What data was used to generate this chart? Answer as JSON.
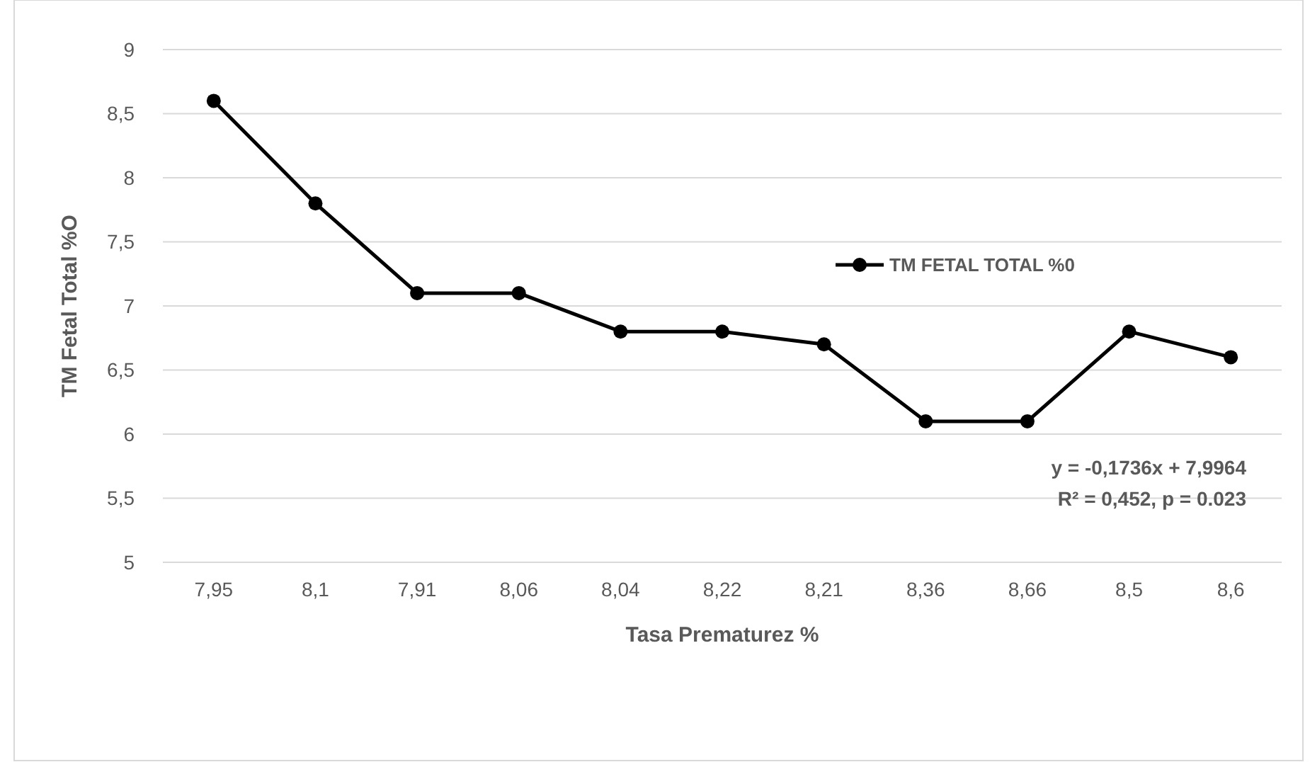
{
  "chart_data": {
    "type": "line",
    "xlabel": "Tasa Prematurez %",
    "ylabel": "TM Fetal Total %O",
    "categories": [
      "7,95",
      "8,1",
      "7,91",
      "8,06",
      "8,04",
      "8,22",
      "8,21",
      "8,36",
      "8,66",
      "8,5",
      "8,6"
    ],
    "series": [
      {
        "name": "TM FETAL TOTAL %0",
        "color": "#000000",
        "values": [
          8.6,
          7.8,
          7.1,
          7.1,
          6.8,
          6.8,
          6.7,
          6.1,
          6.1,
          6.8,
          6.6
        ]
      }
    ],
    "ylim": [
      5,
      9
    ],
    "yticks": [
      5,
      {
        "value": 5.5,
        "label": "5,5"
      },
      6,
      {
        "value": 6.5,
        "label": "6,5"
      },
      7,
      {
        "value": 7.5,
        "label": "7,5"
      },
      8,
      {
        "value": 8.5,
        "label": "8,5"
      },
      9
    ],
    "grid": "y",
    "legend": "right",
    "marker": "circle",
    "line_style": "solid",
    "annotations": [
      "y = -0,1736x + 7,9964",
      "R² = 0,452, p = 0.023"
    ]
  }
}
